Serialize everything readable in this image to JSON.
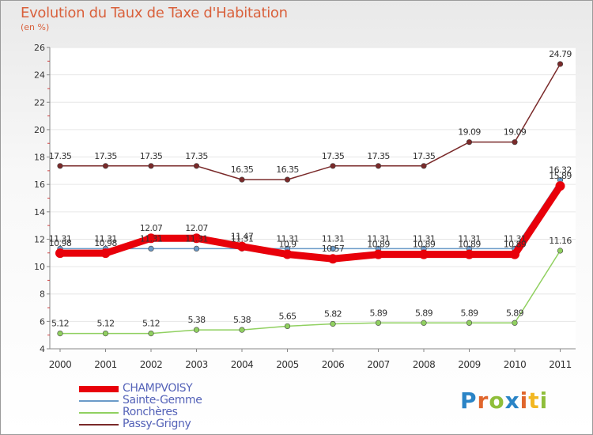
{
  "chart_data": {
    "type": "line",
    "title": "Evolution du Taux de Taxe d'Habitation",
    "ylabel": "(en %)",
    "xlabel": "",
    "ylim": [
      4,
      26
    ],
    "yticks": [
      4,
      6,
      8,
      10,
      12,
      14,
      16,
      18,
      20,
      22,
      24,
      26
    ],
    "categories": [
      "2000",
      "2001",
      "2002",
      "2003",
      "2004",
      "2005",
      "2006",
      "2007",
      "2008",
      "2009",
      "2010",
      "2011"
    ],
    "series": [
      {
        "name": "Passy-Grigny",
        "color": "#7a2a2a",
        "values": [
          17.35,
          17.35,
          17.35,
          17.35,
          16.35,
          16.35,
          17.35,
          17.35,
          17.35,
          19.09,
          19.09,
          24.79
        ],
        "labels": [
          "17.35",
          "17.35",
          "17.35",
          "17.35",
          "16.35",
          "16.35",
          "17.35",
          "17.35",
          "17.35",
          "19.09",
          "19.09",
          "24.79"
        ]
      },
      {
        "name": "Ronchères",
        "color": "#90d060",
        "values": [
          5.12,
          5.12,
          5.12,
          5.38,
          5.38,
          5.65,
          5.82,
          5.89,
          5.89,
          5.89,
          5.89,
          11.16
        ],
        "labels": [
          "5.12",
          "5.12",
          "5.12",
          "5.38",
          "5.38",
          "5.65",
          "5.82",
          "5.89",
          "5.89",
          "5.89",
          "5.89",
          "11.16"
        ]
      },
      {
        "name": "Sainte-Gemme",
        "color": "#6a9ac8",
        "values": [
          11.31,
          11.31,
          11.31,
          11.31,
          11.31,
          11.31,
          11.31,
          11.31,
          11.31,
          11.31,
          11.31,
          16.32
        ],
        "labels": [
          "11.31",
          "11.31",
          "11.31",
          "11.31",
          "11.31",
          "11.31",
          "11.31",
          "11.31",
          "11.31",
          "11.31",
          "11.31",
          "16.32"
        ]
      },
      {
        "name": "CHAMPVOISY",
        "color": "#e8000a",
        "values": [
          10.98,
          10.98,
          12.07,
          12.07,
          11.47,
          10.9,
          10.57,
          10.89,
          10.89,
          10.89,
          10.89,
          15.89
        ],
        "labels": [
          "10.98",
          "10.98",
          "12.07",
          "12.07",
          "11.47",
          "10.9",
          "10.57",
          "10.89",
          "10.89",
          "10.89",
          "10.89",
          "15.89"
        ]
      }
    ]
  },
  "legend": [
    {
      "name": "CHAMPVOISY",
      "color": "#e8000a"
    },
    {
      "name": "Sainte-Gemme",
      "color": "#6a9ac8"
    },
    {
      "name": "Ronchères",
      "color": "#90d060"
    },
    {
      "name": "Passy-Grigny",
      "color": "#7a2a2a"
    }
  ],
  "logo": {
    "p": "P",
    "r": "r",
    "o": "o",
    "x": "x",
    "i": "i",
    "t": "t",
    "i2": "i"
  }
}
